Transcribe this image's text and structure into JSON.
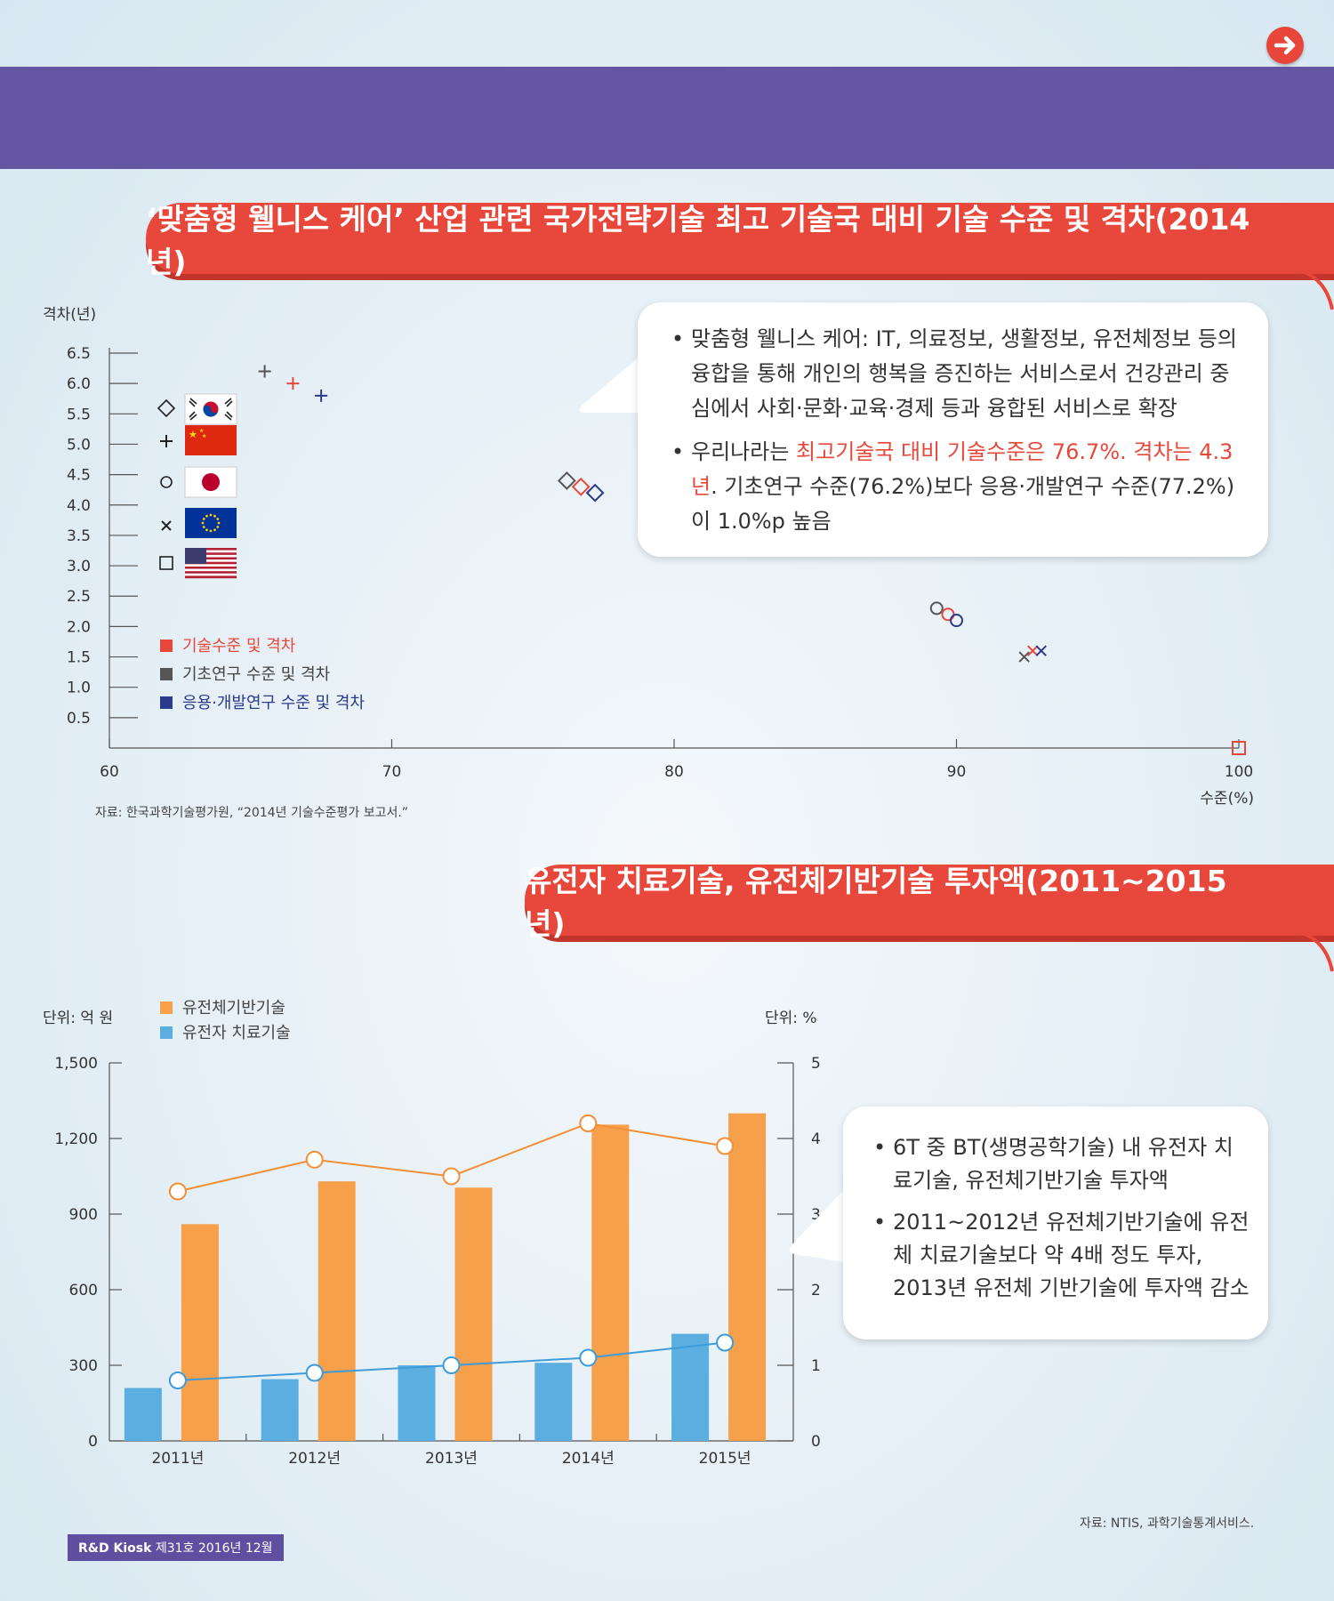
{
  "header": {
    "next_icon": "arrow-right-icon",
    "accent_color": "#e8473b",
    "band_color": "#6556a3"
  },
  "chart1": {
    "title": "‘맞춤형 웰니스 케어’ 산업 관련 국가전략기술 최고 기술국 대비 기술 수준 및 격차(2014년)",
    "ylabel": "격차(년)",
    "xlabel": "수준(%)",
    "source": "자료: 한국과학기술평가원, “2014년 기술수준평가 보고서.”",
    "countries": [
      {
        "symbol": "diamond",
        "flag": "korea-flag-icon"
      },
      {
        "symbol": "plus",
        "flag": "china-flag-icon"
      },
      {
        "symbol": "circle",
        "flag": "japan-flag-icon"
      },
      {
        "symbol": "cross",
        "flag": "eu-flag-icon"
      },
      {
        "symbol": "square",
        "flag": "usa-flag-icon"
      }
    ],
    "legend": [
      "기술수준 및 격차",
      "기초연구 수준 및 격차",
      "응용·개발연구 수준 및 격차"
    ],
    "callout": [
      {
        "text": "맞춤형 웰니스 케어: IT, 의료정보, 생활정보, 유전체정보 등의 융합을 통해 개인의 행복을 증진하는 서비스로서 건강관리 중심에서 사회·문화·교육·경제 등과 융합된 서비스로 확장"
      },
      {
        "pre": "우리나라는 ",
        "highlight": "최고기술국 대비 기술수준은 76.7%. 격차는 4.3년",
        "post": ". 기초연구 수준(76.2%)보다 응용·개발연구 수준(77.2%)이 1.0%p 높음"
      }
    ]
  },
  "chart2": {
    "title": "유전자 치료기술, 유전체기반기술 투자액(2011~2015년)",
    "left_unit": "단위: 억 원",
    "right_unit": "단위: %",
    "source": "자료: NTIS, 과학기술통계서비스.",
    "callout": [
      "6T 중 BT(생명공학기술) 내 유전자 치료기술, 유전체기반기술 투자액",
      "2011~2012년 유전체기반기술에 유전체 치료기술보다 약 4배 정도 투자, 2013년 유전체 기반기술에 투자액 감소"
    ]
  },
  "chart_data": [
    {
      "type": "scatter",
      "title": "‘맞춤형 웰니스 케어’ 산업 관련 국가전략기술 최고 기술국 대비 기술 수준 및 격차(2014년)",
      "xlabel": "수준(%)",
      "ylabel": "격차(년)",
      "xlim": [
        60,
        100
      ],
      "ylim": [
        0,
        6.5
      ],
      "xticks": [
        "60",
        "70",
        "80",
        "90",
        "100"
      ],
      "yticks": [
        "6.5",
        "6.0",
        "5.5",
        "5.0",
        "4.5",
        "4.0",
        "3.5",
        "3.0",
        "2.5",
        "2.0",
        "1.5",
        "1.0",
        "0.5"
      ],
      "legend": [
        "기술수준 및 격차",
        "기초연구 수준 및 격차",
        "응용·개발연구 수준 및 격차"
      ],
      "colors": {
        "기술수준 및 격차": "#e8473b",
        "기초연구 수준 및 격차": "#555555",
        "응용·개발연구 수준 및 격차": "#2b3a8c"
      },
      "points": [
        {
          "marker": "diamond",
          "series": "기초연구 수준 및 격차",
          "x": 76.2,
          "y": 4.4
        },
        {
          "marker": "diamond",
          "series": "기술수준 및 격차",
          "x": 76.7,
          "y": 4.3
        },
        {
          "marker": "diamond",
          "series": "응용·개발연구 수준 및 격차",
          "x": 77.2,
          "y": 4.2
        },
        {
          "marker": "plus",
          "series": "기초연구 수준 및 격차",
          "x": 65.5,
          "y": 6.2
        },
        {
          "marker": "plus",
          "series": "기술수준 및 격차",
          "x": 66.5,
          "y": 6.0
        },
        {
          "marker": "plus",
          "series": "응용·개발연구 수준 및 격차",
          "x": 67.5,
          "y": 5.8
        },
        {
          "marker": "circle",
          "series": "기초연구 수준 및 격차",
          "x": 89.3,
          "y": 2.3
        },
        {
          "marker": "circle",
          "series": "기술수준 및 격차",
          "x": 89.7,
          "y": 2.2
        },
        {
          "marker": "circle",
          "series": "응용·개발연구 수준 및 격차",
          "x": 90.0,
          "y": 2.1
        },
        {
          "marker": "cross",
          "series": "기초연구 수준 및 격차",
          "x": 92.4,
          "y": 1.5
        },
        {
          "marker": "cross",
          "series": "기술수준 및 격차",
          "x": 92.7,
          "y": 1.6
        },
        {
          "marker": "cross",
          "series": "응용·개발연구 수준 및 격차",
          "x": 93.0,
          "y": 1.6
        },
        {
          "marker": "square",
          "series": "기술수준 및 격차",
          "x": 100,
          "y": 0
        }
      ]
    },
    {
      "type": "bar",
      "title": "유전자 치료기술, 유전체기반기술 투자액(2011~2015년)",
      "categories": [
        "2011년",
        "2012년",
        "2013년",
        "2014년",
        "2015년"
      ],
      "ylim_left": [
        0,
        1500
      ],
      "ylim_right": [
        0,
        5
      ],
      "yticks_left": [
        "0",
        "300",
        "600",
        "900",
        "1,200",
        "1,500"
      ],
      "yticks_right": [
        "0",
        "1",
        "2",
        "3",
        "4",
        "5"
      ],
      "left_unit": "단위: 억 원",
      "right_unit": "단위: %",
      "series": [
        {
          "name": "유전자 치료기술",
          "kind": "bar",
          "color": "#5aafe0",
          "values": [
            210,
            245,
            300,
            310,
            425
          ]
        },
        {
          "name": "유전체기반기술",
          "kind": "bar",
          "color": "#f7a04b",
          "values": [
            860,
            1030,
            1005,
            1255,
            1300
          ]
        },
        {
          "name": "유전체기반기술",
          "kind": "line",
          "axis": "right",
          "color": "#f28f36",
          "values": [
            3.3,
            3.72,
            3.5,
            4.2,
            3.9
          ]
        },
        {
          "name": "유전자 치료기술",
          "kind": "line",
          "axis": "right",
          "color": "#3d9cd9",
          "values": [
            0.8,
            0.9,
            1.0,
            1.1,
            1.3
          ]
        }
      ]
    }
  ],
  "footer": {
    "brand": "R&D Kiosk",
    "issue": " 제31호 2016년 12월"
  }
}
